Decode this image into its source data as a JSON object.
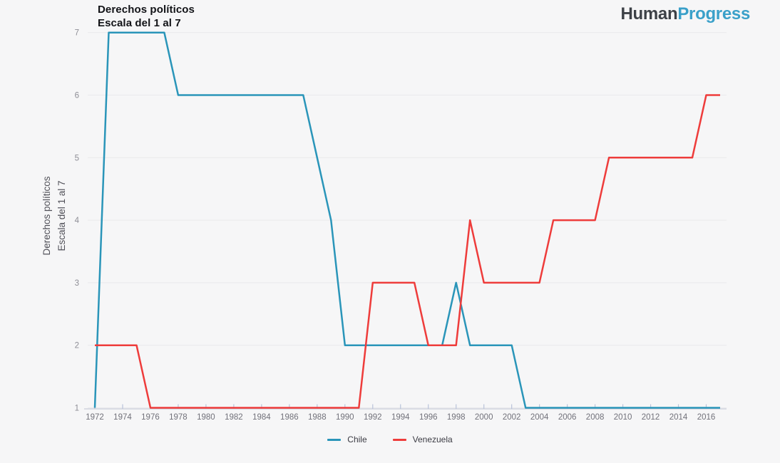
{
  "header": {
    "title_line1": "Derechos políticos",
    "title_line2": "Escala del 1 al 7",
    "logo": {
      "part1": "Human",
      "part2": "Progress",
      "part1_color": "#3d4147",
      "part2_color": "#3aa0c9"
    }
  },
  "chart_data": {
    "type": "line",
    "title": "Derechos políticos",
    "subtitle": "Escala del 1 al 7",
    "ylabel_line1": "Derechos políticos",
    "ylabel_line2": "Escala del 1 al 7",
    "xlabel": "",
    "ylim": [
      1,
      7
    ],
    "grid": "horizontal",
    "legend_position": "bottom-center",
    "y_ticks": [
      1,
      2,
      3,
      4,
      5,
      6,
      7
    ],
    "x_tick_labels": [
      "1972",
      "1974",
      "1976",
      "1978",
      "1980",
      "1982",
      "1984",
      "1986",
      "1988",
      "1990",
      "1992",
      "1994",
      "1996",
      "1998",
      "2000",
      "2002",
      "2004",
      "2006",
      "2008",
      "2010",
      "2012",
      "2014",
      "2016"
    ],
    "x": [
      1972,
      1973,
      1974,
      1975,
      1976,
      1977,
      1978,
      1979,
      1980,
      1981,
      1982,
      1983,
      1984,
      1985,
      1986,
      1987,
      1988,
      1989,
      1990,
      1991,
      1992,
      1993,
      1994,
      1995,
      1996,
      1997,
      1998,
      1999,
      2000,
      2001,
      2002,
      2003,
      2004,
      2005,
      2006,
      2007,
      2008,
      2009,
      2010,
      2011,
      2012,
      2013,
      2014,
      2015,
      2016,
      2017
    ],
    "series": [
      {
        "name": "Chile",
        "color": "#2a95b9",
        "values": [
          1,
          7,
          7,
          7,
          7,
          7,
          6,
          6,
          6,
          6,
          6,
          6,
          6,
          6,
          6,
          6,
          5,
          4,
          2,
          2,
          2,
          2,
          2,
          2,
          2,
          2,
          3,
          2,
          2,
          2,
          2,
          1,
          1,
          1,
          1,
          1,
          1,
          1,
          1,
          1,
          1,
          1,
          1,
          1,
          1,
          1
        ]
      },
      {
        "name": "Venezuela",
        "color": "#ee3c3b",
        "values": [
          2,
          2,
          2,
          2,
          1,
          1,
          1,
          1,
          1,
          1,
          1,
          1,
          1,
          1,
          1,
          1,
          1,
          1,
          1,
          1,
          3,
          3,
          3,
          3,
          2,
          2,
          2,
          4,
          3,
          3,
          3,
          3,
          3,
          4,
          4,
          4,
          4,
          5,
          5,
          5,
          5,
          5,
          5,
          5,
          6,
          6
        ]
      }
    ],
    "style": {
      "background": "#f6f6f7",
      "gridline_color": "#e9e9ec",
      "axis_line_color": "#c9cdd8",
      "tick_color": "#b9c3da",
      "x_label_color": "#71717a",
      "y_label_color": "#8e8e96",
      "line_width": 2.5
    }
  }
}
